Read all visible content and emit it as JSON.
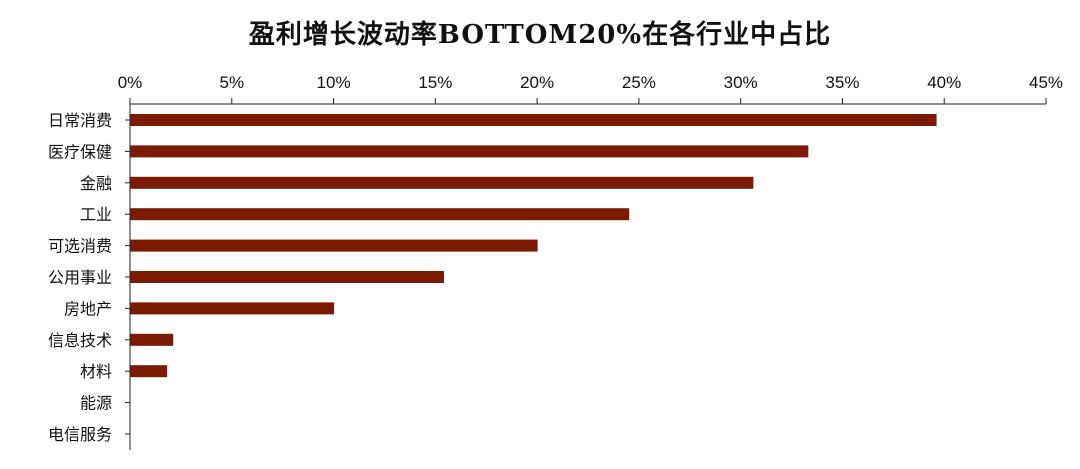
{
  "chart_data": {
    "type": "bar",
    "orientation": "horizontal",
    "title": "盈利增长波动率BOTTOM20%在各行业中占比",
    "xlabel": "",
    "ylabel": "",
    "x_axis_position": "top",
    "xlim": [
      0,
      45
    ],
    "x_ticks": [
      "0%",
      "5%",
      "10%",
      "15%",
      "20%",
      "25%",
      "30%",
      "35%",
      "40%",
      "45%"
    ],
    "categories": [
      "日常消费",
      "医疗保健",
      "金融",
      "工业",
      "可选消费",
      "公用事业",
      "房地产",
      "信息技术",
      "材料",
      "能源",
      "电信服务"
    ],
    "values": [
      39.6,
      33.3,
      30.6,
      24.5,
      20.0,
      15.4,
      10.0,
      2.1,
      1.8,
      0.0,
      0.0
    ],
    "bar_color": "#7a1a00",
    "grid": false,
    "legend": "none"
  }
}
